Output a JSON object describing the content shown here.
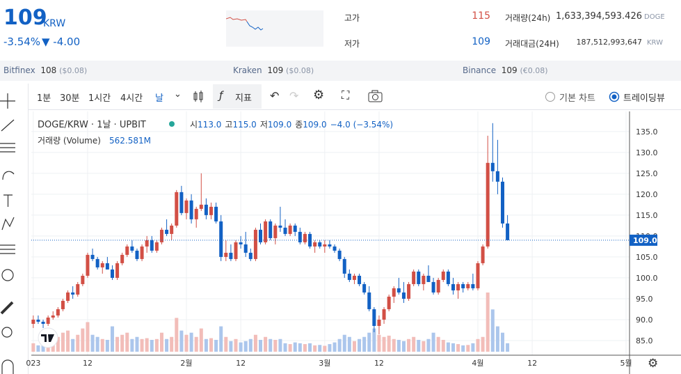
{
  "header": {
    "price": "109",
    "unit": "KRW",
    "change_rate": "-3.54%",
    "change_price": "▼ -4.00",
    "stats": [
      {
        "label": "고가",
        "value": "115"
      },
      {
        "label": "저가",
        "value": "109"
      }
    ],
    "volume": {
      "label": "거래량(24h)",
      "value": "1,633,394,593.426",
      "unit": "DOGE"
    },
    "amount": {
      "label": "거래대금(24H)",
      "value": "187,512,993,647",
      "unit": "KRW"
    }
  },
  "exchanges": [
    {
      "name": "Bitfinex",
      "price": "108",
      "usd": "($0.08)"
    },
    {
      "name": "Kraken",
      "price": "109",
      "usd": "($0.08)"
    },
    {
      "name": "Binance",
      "price": "109",
      "usd": "(€0.08)"
    }
  ],
  "toolbar": {
    "intervals": [
      "1분",
      "30분",
      "1시간",
      "4시간",
      "날"
    ],
    "indicator": "지표",
    "views": [
      "기본 차트",
      "트레이딩뷰"
    ]
  },
  "chart_data": {
    "type": "candlestick",
    "title": "DOGE/KRW · 1날 · UPBIT",
    "ohlc_legend": [
      {
        "label": "시",
        "value": "113.0"
      },
      {
        "label": "고",
        "value": "115.0"
      },
      {
        "label": "저",
        "value": "109.0"
      },
      {
        "label": "종",
        "value": "109.0"
      }
    ],
    "change": "−4.0 (−3.54%)",
    "volume_legend": {
      "label": "거래량 (Volume)",
      "value": "562.581M"
    },
    "up_color": "#d24f45",
    "down_color": "#1261c4",
    "up_volume_color": "#f2bdb9",
    "down_volume_color": "#abc6ec",
    "open": [
      89,
      90,
      89.5,
      89,
      90.5,
      91,
      92.5,
      94.5,
      96.5,
      96,
      98.5,
      100.5,
      105.5,
      104.5,
      102.5,
      103.5,
      102,
      100,
      103.5,
      105.5,
      107.5,
      106.5,
      104.5,
      107.5,
      109,
      106.5,
      108.5,
      111.5,
      110.5,
      112.5,
      120.5,
      115.5,
      118.5,
      114,
      116.5,
      117.5,
      115,
      117,
      113.5,
      105,
      106,
      104.5,
      108.5,
      108,
      106,
      104.5,
      111.5,
      108.5,
      113.5,
      109.5,
      112.5,
      112,
      110.5,
      112.5,
      111,
      108.5,
      110.5,
      107.5,
      108.5,
      107.5,
      108,
      107.5,
      106.5,
      104.5,
      101,
      99.5,
      100.5,
      98.5,
      96.5,
      92.5,
      88.5,
      90,
      92.5,
      95.5,
      97.5,
      96.5,
      95,
      98.5,
      101.5,
      98.5,
      100.5,
      99,
      96.5,
      99.5,
      101.5,
      98.5,
      97,
      98.5,
      97.5,
      98.5,
      97.5,
      103.5,
      107.5,
      127.5,
      125.5,
      123,
      113
    ],
    "high": [
      91,
      91,
      90,
      91,
      92,
      93,
      95,
      97,
      98,
      99,
      101,
      106,
      107,
      105,
      104,
      105,
      103,
      104,
      106,
      108,
      109,
      107,
      108,
      110,
      110,
      109,
      112,
      114,
      113,
      121,
      122,
      119,
      120,
      117,
      125,
      119,
      118,
      118,
      115,
      109,
      108,
      109,
      110,
      111,
      107,
      112,
      113,
      114,
      114,
      113,
      117,
      114,
      113,
      113,
      112,
      111,
      111,
      109,
      109,
      109,
      109,
      108,
      107,
      105,
      102,
      101,
      101,
      99,
      98,
      93,
      91,
      93,
      96,
      98,
      100,
      99,
      99,
      102,
      102,
      101,
      103,
      100,
      100,
      102,
      102,
      100,
      99,
      99,
      99,
      101,
      104,
      108,
      134,
      137,
      133,
      124,
      115
    ],
    "low": [
      88,
      89,
      88,
      88.5,
      90,
      90.5,
      92,
      94,
      95,
      95.5,
      98,
      100,
      104,
      102,
      101,
      102,
      99.5,
      99.5,
      103,
      105,
      106,
      104,
      104,
      106,
      106,
      106,
      108,
      110,
      109,
      112,
      115,
      114,
      113,
      112,
      116,
      114,
      114,
      113,
      104,
      104,
      104,
      104,
      107,
      105,
      104,
      104,
      108,
      108,
      109,
      108,
      111,
      110,
      110,
      110,
      108,
      108,
      107,
      106,
      107,
      106,
      107,
      106,
      104,
      100,
      99,
      98.5,
      98,
      96,
      92,
      87,
      86.5,
      89,
      92,
      94,
      96,
      94,
      94.5,
      98,
      98,
      97,
      99,
      96,
      96,
      99,
      98,
      96,
      95,
      96.5,
      97,
      97,
      97,
      103,
      107,
      123,
      120,
      112,
      109
    ],
    "close": [
      90,
      89.5,
      89,
      90.5,
      91,
      92.5,
      94.5,
      96.5,
      96,
      98.5,
      100.5,
      105.5,
      104.5,
      102.5,
      103.5,
      102,
      100,
      103.5,
      105.5,
      107.5,
      106.5,
      104.5,
      107.5,
      109,
      106.5,
      108.5,
      111.5,
      110.5,
      112.5,
      120.5,
      115.5,
      118.5,
      114,
      116.5,
      117.5,
      115,
      117,
      113.5,
      105,
      106,
      104.5,
      108.5,
      108,
      106,
      104.5,
      111.5,
      108.5,
      113.5,
      109.5,
      112.5,
      112,
      110.5,
      112.5,
      111,
      108.5,
      110.5,
      107.5,
      108.5,
      107.5,
      108,
      107.5,
      106.5,
      104.5,
      101,
      99.5,
      100.5,
      98.5,
      96.5,
      92.5,
      88.5,
      90,
      92.5,
      95.5,
      97.5,
      96.5,
      95,
      98.5,
      101.5,
      98.5,
      100.5,
      99,
      96.5,
      99.5,
      101.5,
      98.5,
      97,
      98.5,
      97.5,
      98.5,
      97.5,
      103.5,
      107.5,
      127.5,
      125.5,
      123,
      113,
      109
    ],
    "volume": [
      560,
      420,
      504,
      700,
      840,
      980,
      1260,
      1400,
      840,
      1120,
      1540,
      1960,
      1120,
      980,
      840,
      784,
      1680,
      980,
      1120,
      1260,
      840,
      980,
      840,
      896,
      784,
      840,
      1260,
      840,
      980,
      2240,
      1400,
      1120,
      1260,
      980,
      1540,
      840,
      896,
      784,
      1680,
      980,
      700,
      840,
      616,
      700,
      840,
      1120,
      784,
      980,
      840,
      784,
      840,
      560,
      504,
      616,
      560,
      504,
      560,
      420,
      448,
      392,
      504,
      616,
      840,
      1120,
      980,
      700,
      840,
      980,
      1260,
      1540,
      1120,
      980,
      1064,
      840,
      784,
      700,
      840,
      980,
      784,
      700,
      840,
      1260,
      980,
      784,
      616,
      560,
      504,
      420,
      448,
      560,
      840,
      980,
      3920,
      2800,
      1680,
      1260,
      562.581
    ],
    "last_price": {
      "value": 109,
      "label": "109.0"
    },
    "ylim": [
      81.5,
      139.8
    ],
    "yticks": [
      {
        "value": 85,
        "label": "85.0"
      },
      {
        "value": 90,
        "label": "90.0"
      },
      {
        "value": 95,
        "label": "95.0"
      },
      {
        "value": 100,
        "label": "100.0"
      },
      {
        "value": 105,
        "label": "105.0"
      },
      {
        "value": 110,
        "label": "110.0"
      },
      {
        "value": 115,
        "label": "115.0"
      },
      {
        "value": 120,
        "label": "120.0"
      },
      {
        "value": 125,
        "label": "125.0"
      },
      {
        "value": 130,
        "label": "130.0"
      },
      {
        "value": 135,
        "label": "135.0"
      }
    ],
    "xlim": [
      -0.4,
      120.7
    ],
    "xticks": [
      {
        "value": 0,
        "label": "023"
      },
      {
        "value": 11,
        "label": "12"
      },
      {
        "value": 31,
        "label": "2월"
      },
      {
        "value": 42,
        "label": "12"
      },
      {
        "value": 59,
        "label": "3월"
      },
      {
        "value": 70,
        "label": "12"
      },
      {
        "value": 90,
        "label": "4월"
      },
      {
        "value": 101,
        "label": "12"
      },
      {
        "value": 120,
        "label": "5월"
      }
    ],
    "grid": true
  }
}
